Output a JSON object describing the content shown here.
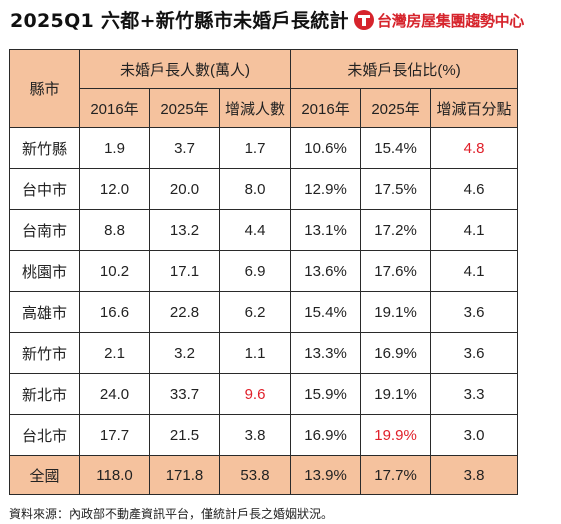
{
  "header": {
    "title": "2025Q1 六都+新竹縣市未婚戶長統計",
    "brand": "台灣房屋集團趨勢中心"
  },
  "table": {
    "corner": "縣市",
    "group1": "未婚戶長人數(萬人)",
    "group2": "未婚戶長佔比(%)",
    "sub": [
      "2016年",
      "2025年",
      "增減人數",
      "2016年",
      "2025年",
      "增減百分點"
    ],
    "rows": [
      {
        "city": "新竹縣",
        "c": [
          "1.9",
          "3.7",
          "1.7",
          "10.6%",
          "15.4%",
          "4.8"
        ]
      },
      {
        "city": "台中市",
        "c": [
          "12.0",
          "20.0",
          "8.0",
          "12.9%",
          "17.5%",
          "4.6"
        ]
      },
      {
        "city": "台南市",
        "c": [
          "8.8",
          "13.2",
          "4.4",
          "13.1%",
          "17.2%",
          "4.1"
        ]
      },
      {
        "city": "桃園市",
        "c": [
          "10.2",
          "17.1",
          "6.9",
          "13.6%",
          "17.6%",
          "4.1"
        ]
      },
      {
        "city": "高雄市",
        "c": [
          "16.6",
          "22.8",
          "6.2",
          "15.4%",
          "19.1%",
          "3.6"
        ]
      },
      {
        "city": "新竹市",
        "c": [
          "2.1",
          "3.2",
          "1.1",
          "13.3%",
          "16.9%",
          "3.6"
        ]
      },
      {
        "city": "新北市",
        "c": [
          "24.0",
          "33.7",
          "9.6",
          "15.9%",
          "19.1%",
          "3.3"
        ]
      },
      {
        "city": "台北市",
        "c": [
          "17.7",
          "21.5",
          "3.8",
          "16.9%",
          "19.9%",
          "3.0"
        ]
      }
    ],
    "total": {
      "city": "全國",
      "c": [
        "118.0",
        "171.8",
        "53.8",
        "13.9%",
        "17.7%",
        "3.8"
      ]
    }
  },
  "highlight_color": "#e0202a",
  "source": "資料來源：內政部不動產資訊平台，僅統計戶長之婚姻狀況。"
}
